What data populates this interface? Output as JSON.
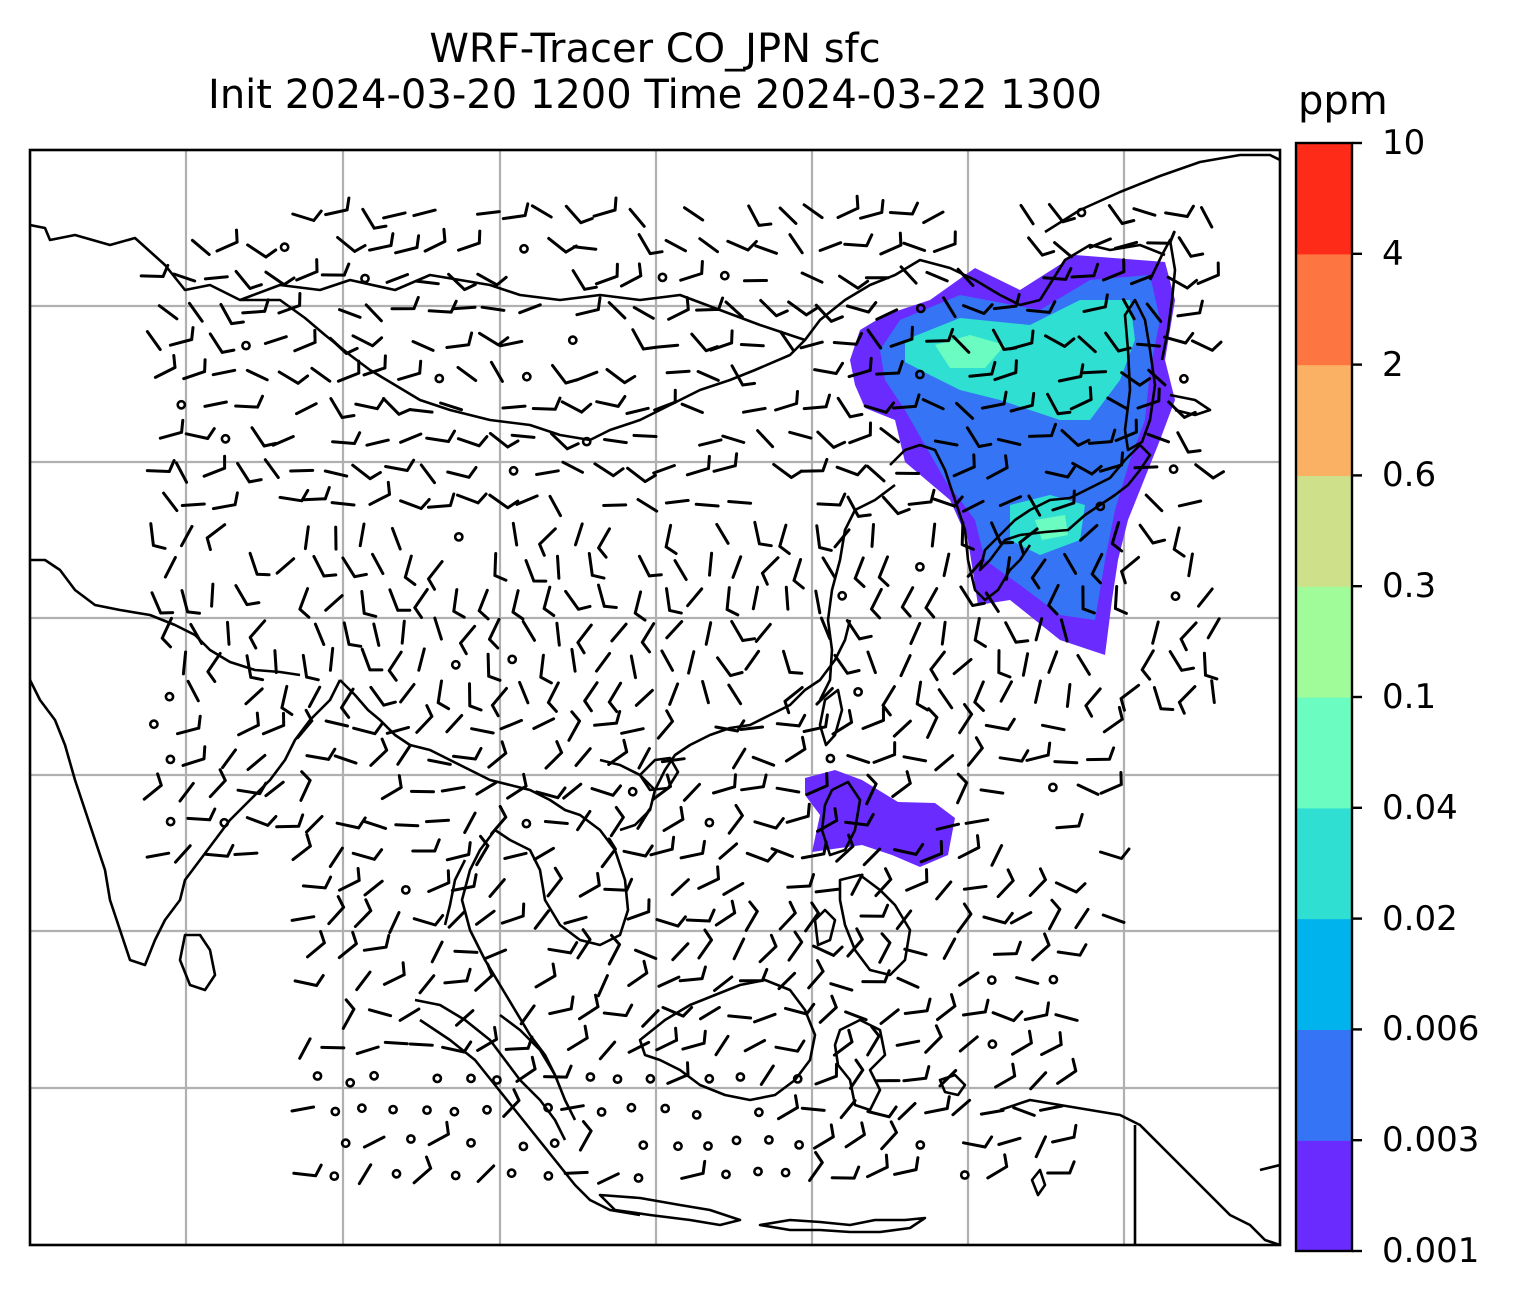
{
  "title": {
    "line1": "WRF-Tracer CO_JPN sfc",
    "line2": "Init 2024-03-20 1200 Time 2024-03-22 1300"
  },
  "colorbar": {
    "units": "ppm",
    "levels": [
      "0.001",
      "0.003",
      "0.006",
      "0.02",
      "0.04",
      "0.1",
      "0.3",
      "0.6",
      "2",
      "4",
      "10"
    ],
    "colors": [
      "#6a2bff",
      "#3575f5",
      "#00b3ec",
      "#2fe0d2",
      "#6afcc0",
      "#9ffc99",
      "#cfe08a",
      "#fbb163",
      "#fd7540",
      "#fd2b17"
    ]
  },
  "map": {
    "gridline_color": "#b0b0b0",
    "coastline_color": "#000000",
    "plume_colors": [
      "#6a2bff",
      "#3575f5",
      "#2fe0d2",
      "#6afcc0"
    ]
  }
}
